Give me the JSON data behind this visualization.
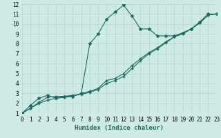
{
  "xlabel": "Humidex (Indice chaleur)",
  "bg_color": "#ceeae6",
  "grid_color": "#b0d8d0",
  "line_color": "#1a6b5a",
  "line1_x": [
    0,
    1,
    2,
    3,
    4,
    5,
    6,
    7,
    8,
    9,
    10,
    11,
    12,
    13,
    14,
    15,
    16,
    17,
    18,
    19,
    20,
    21,
    22,
    23
  ],
  "line1_y": [
    1,
    1.8,
    2.5,
    2.8,
    2.5,
    2.7,
    2.7,
    3.0,
    8.0,
    9.0,
    10.5,
    11.2,
    11.9,
    10.8,
    9.5,
    9.5,
    8.8,
    8.8,
    8.8,
    9.1,
    9.5,
    10.2,
    11.0,
    11.0
  ],
  "line2_x": [
    0,
    1,
    2,
    3,
    4,
    5,
    6,
    7,
    8,
    9,
    10,
    11,
    12,
    13,
    14,
    15,
    16,
    17,
    18,
    19,
    20,
    21,
    22,
    23
  ],
  "line2_y": [
    1,
    1.5,
    2.0,
    2.3,
    2.5,
    2.6,
    2.7,
    3.0,
    3.2,
    3.5,
    4.3,
    4.5,
    5.0,
    5.8,
    6.5,
    7.1,
    7.6,
    8.2,
    8.7,
    9.1,
    9.5,
    10.1,
    10.9,
    11.0
  ],
  "line3_x": [
    0,
    1,
    2,
    3,
    4,
    5,
    6,
    7,
    8,
    9,
    10,
    11,
    12,
    13,
    14,
    15,
    16,
    17,
    18,
    19,
    20,
    21,
    22,
    23
  ],
  "line3_y": [
    1,
    1.5,
    2.1,
    2.6,
    2.7,
    2.7,
    2.8,
    2.9,
    3.1,
    3.4,
    4.0,
    4.3,
    4.7,
    5.5,
    6.3,
    7.0,
    7.5,
    8.1,
    8.7,
    9.0,
    9.5,
    10.1,
    10.9,
    11.0
  ],
  "xlim": [
    0,
    23
  ],
  "ylim": [
    1,
    12
  ],
  "xticks": [
    0,
    1,
    2,
    3,
    4,
    5,
    6,
    7,
    8,
    9,
    10,
    11,
    12,
    13,
    14,
    15,
    16,
    17,
    18,
    19,
    20,
    21,
    22,
    23
  ],
  "yticks": [
    1,
    2,
    3,
    4,
    5,
    6,
    7,
    8,
    9,
    10,
    11,
    12
  ],
  "xlabel_fontsize": 6.5,
  "tick_fontsize": 5.5
}
